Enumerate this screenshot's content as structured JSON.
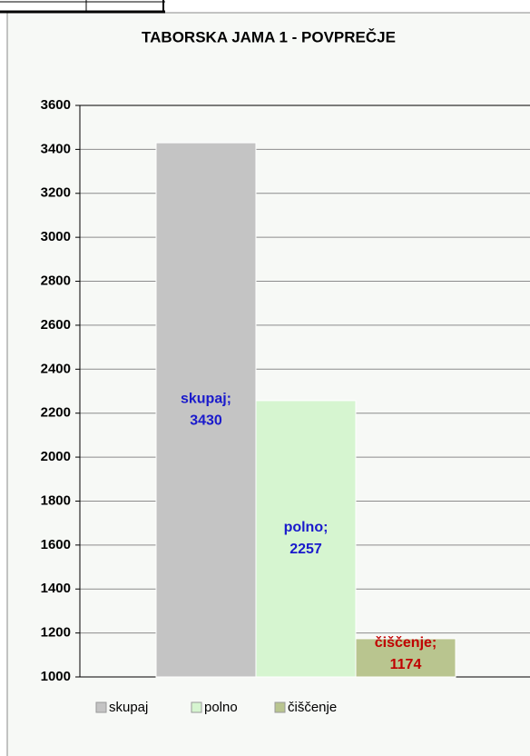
{
  "chart_data": {
    "type": "bar",
    "title": "TABORSKA JAMA 1 - POVPREČJE",
    "categories": [
      "skupaj",
      "polno",
      "čiščenje"
    ],
    "values": [
      3430,
      2257,
      1174
    ],
    "value_labels": [
      [
        "skupaj;",
        "3430"
      ],
      [
        "polno;",
        "2257"
      ],
      [
        "čiščenje;",
        "1174"
      ]
    ],
    "colors": [
      "#c4c4c4",
      "#d6f5d0",
      "#b9c58f"
    ],
    "label_colors": [
      "#1a1acc",
      "#1a1acc",
      "#c00000"
    ],
    "ylim": [
      1000,
      3600
    ],
    "yticks": [
      1000,
      1200,
      1400,
      1600,
      1800,
      2000,
      2200,
      2400,
      2600,
      2800,
      3000,
      3200,
      3400,
      3600
    ],
    "grid": true,
    "legend": "bottom"
  }
}
